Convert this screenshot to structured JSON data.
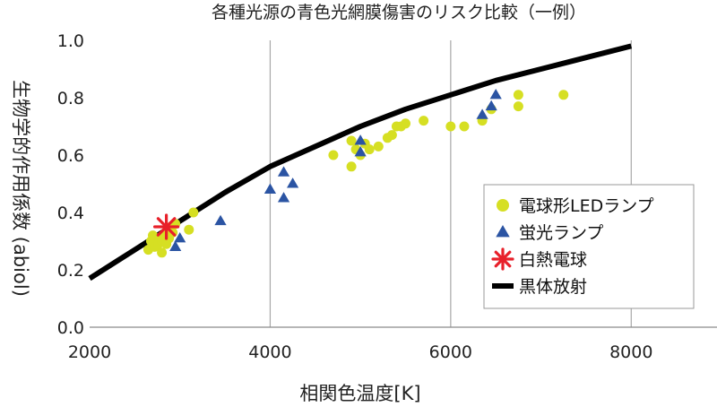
{
  "chart_data": {
    "type": "scatter",
    "title": "各種光源の青色光網膜傷害のリスク比較（一例）",
    "xlabel": "相関色温度[K]",
    "ylabel": "生物学的作用係数 (abiol)",
    "xlim": [
      2000,
      9000
    ],
    "ylim": [
      0.0,
      1.0
    ],
    "xticks": [
      "2000",
      "4000",
      "6000",
      "8000"
    ],
    "yticks": [
      "0.0",
      "0.2",
      "0.4",
      "0.6",
      "0.8",
      "1.0"
    ],
    "grid": "vertical",
    "legend_position": "right",
    "series": [
      {
        "name": "電球形LEDランプ",
        "marker": "circle",
        "color": "#d6df23",
        "points": [
          [
            2650,
            0.27
          ],
          [
            2680,
            0.3
          ],
          [
            2700,
            0.32
          ],
          [
            2720,
            0.28
          ],
          [
            2760,
            0.29
          ],
          [
            2780,
            0.31
          ],
          [
            2800,
            0.3
          ],
          [
            2820,
            0.32
          ],
          [
            2840,
            0.33
          ],
          [
            2850,
            0.29
          ],
          [
            2870,
            0.34
          ],
          [
            2880,
            0.31
          ],
          [
            2900,
            0.35
          ],
          [
            2920,
            0.33
          ],
          [
            2950,
            0.36
          ],
          [
            2800,
            0.26
          ],
          [
            3100,
            0.34
          ],
          [
            3150,
            0.4
          ],
          [
            4700,
            0.6
          ],
          [
            4900,
            0.56
          ],
          [
            4900,
            0.65
          ],
          [
            4950,
            0.62
          ],
          [
            5000,
            0.6
          ],
          [
            5050,
            0.64
          ],
          [
            5100,
            0.62
          ],
          [
            5200,
            0.63
          ],
          [
            5300,
            0.66
          ],
          [
            5350,
            0.67
          ],
          [
            5400,
            0.7
          ],
          [
            5450,
            0.7
          ],
          [
            5500,
            0.71
          ],
          [
            5700,
            0.72
          ],
          [
            6000,
            0.7
          ],
          [
            6150,
            0.7
          ],
          [
            6350,
            0.72
          ],
          [
            6450,
            0.76
          ],
          [
            6750,
            0.81
          ],
          [
            6750,
            0.77
          ],
          [
            7250,
            0.81
          ]
        ]
      },
      {
        "name": "蛍光ランプ",
        "marker": "triangle",
        "color": "#2b54a3",
        "points": [
          [
            2950,
            0.28
          ],
          [
            3000,
            0.31
          ],
          [
            3450,
            0.37
          ],
          [
            4000,
            0.48
          ],
          [
            4150,
            0.54
          ],
          [
            4150,
            0.45
          ],
          [
            4250,
            0.5
          ],
          [
            5000,
            0.65
          ],
          [
            5000,
            0.61
          ],
          [
            6350,
            0.74
          ],
          [
            6450,
            0.77
          ],
          [
            6500,
            0.81
          ]
        ]
      },
      {
        "name": "白熱電球",
        "marker": "asterisk",
        "color": "#e8202a",
        "points": [
          [
            2850,
            0.35
          ]
        ]
      },
      {
        "name": "黒体放射",
        "marker": "line",
        "color": "#000000",
        "points": [
          [
            2000,
            0.17
          ],
          [
            2500,
            0.27
          ],
          [
            3000,
            0.37
          ],
          [
            3500,
            0.47
          ],
          [
            4000,
            0.56
          ],
          [
            4500,
            0.63
          ],
          [
            5000,
            0.7
          ],
          [
            5500,
            0.76
          ],
          [
            6000,
            0.81
          ],
          [
            6500,
            0.86
          ],
          [
            7000,
            0.9
          ],
          [
            7500,
            0.94
          ],
          [
            8000,
            0.98
          ]
        ]
      }
    ]
  }
}
